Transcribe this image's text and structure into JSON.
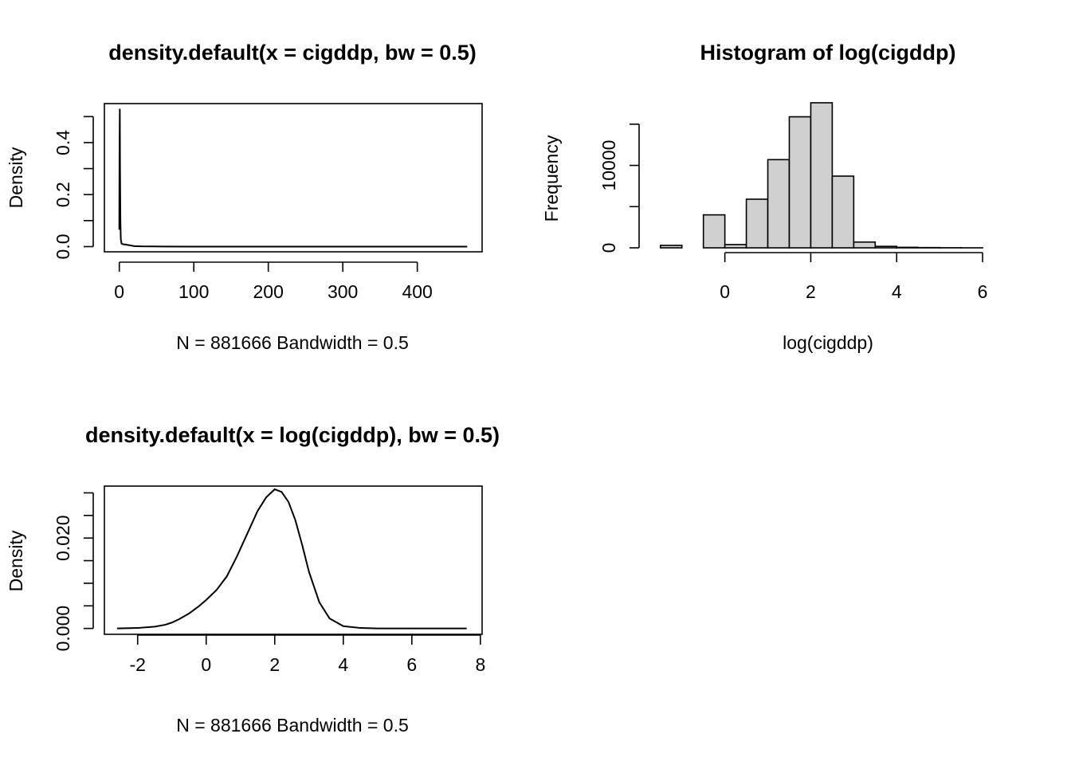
{
  "chart_data": [
    {
      "type": "line",
      "title": "density.default(x = cigddp, bw = 0.5)",
      "xlabel": "N = 881666   Bandwidth = 0.5",
      "ylabel": "Density",
      "xlim": [
        -20,
        487
      ],
      "ylim": [
        -0.02,
        0.55
      ],
      "xticks": [
        0,
        100,
        200,
        300,
        400
      ],
      "yticks": [
        0.0,
        0.1,
        0.2,
        0.3,
        0.4,
        0.5
      ],
      "ytick_labels": [
        "0.0",
        "",
        "0.2",
        "",
        "0.4",
        ""
      ],
      "x": [
        0,
        0.3,
        0.7,
        1,
        1.5,
        2,
        3,
        5,
        8,
        12,
        16,
        20,
        30,
        60,
        100,
        200,
        300,
        400,
        467
      ],
      "y": [
        0.065,
        0.35,
        0.53,
        0.3,
        0.1,
        0.03,
        0.012,
        0.009,
        0.008,
        0.006,
        0.004,
        0.002,
        0.001,
        0.0003,
        0.0001,
        0,
        0,
        0,
        0
      ]
    },
    {
      "type": "bar",
      "title": "Histogram of log(cigddp)",
      "xlabel": "log(cigddp)",
      "ylabel": "Frequency",
      "xlim": [
        -1.7,
        6.5
      ],
      "ylim": [
        0,
        17500
      ],
      "xticks": [
        0,
        2,
        4,
        6
      ],
      "yticks": [
        0,
        5000,
        10000,
        15000
      ],
      "ytick_labels": [
        "0",
        "",
        "10000",
        ""
      ],
      "bins": [
        [
          -1.5,
          -1.0,
          300
        ],
        [
          -1.0,
          -0.5,
          0
        ],
        [
          -0.5,
          0.0,
          4000
        ],
        [
          0.0,
          0.5,
          400
        ],
        [
          0.5,
          1.0,
          5900
        ],
        [
          1.0,
          1.5,
          10700
        ],
        [
          1.5,
          2.0,
          15900
        ],
        [
          2.0,
          2.5,
          17600
        ],
        [
          2.5,
          3.0,
          8700
        ],
        [
          3.0,
          3.5,
          700
        ],
        [
          3.5,
          4.0,
          180
        ],
        [
          4.0,
          4.5,
          60
        ],
        [
          4.5,
          5.0,
          30
        ],
        [
          5.0,
          5.5,
          10
        ],
        [
          5.5,
          6.0,
          5
        ],
        [
          6.0,
          6.5,
          0
        ]
      ]
    },
    {
      "type": "line",
      "title": "density.default(x = log(cigddp), bw = 0.5)",
      "xlabel": "N = 881666   Bandwidth = 0.5",
      "ylabel": "Density",
      "xlim": [
        -2.97,
        8.05
      ],
      "ylim": [
        -0.0013,
        0.0315
      ],
      "xticks": [
        -2,
        0,
        2,
        4,
        6,
        8
      ],
      "yticks": [
        0.0,
        0.005,
        0.01,
        0.015,
        0.02,
        0.025,
        0.03
      ],
      "ytick_labels": [
        "0.000",
        "",
        "",
        "",
        "0.020",
        "",
        ""
      ],
      "x": [
        -2.6,
        -2.0,
        -1.5,
        -1.2,
        -1.0,
        -0.8,
        -0.5,
        -0.2,
        0,
        0.3,
        0.6,
        0.9,
        1.2,
        1.5,
        1.75,
        2.0,
        2.2,
        2.4,
        2.6,
        2.8,
        3.0,
        3.3,
        3.6,
        4.0,
        4.5,
        5.0,
        6.0,
        7.0,
        7.6
      ],
      "y": [
        0.0,
        0.0001,
        0.0004,
        0.0008,
        0.0013,
        0.002,
        0.0033,
        0.005,
        0.0063,
        0.0085,
        0.0115,
        0.016,
        0.021,
        0.026,
        0.029,
        0.0308,
        0.0302,
        0.028,
        0.024,
        0.0185,
        0.0125,
        0.0058,
        0.0022,
        0.0005,
        0.0001,
        0.0,
        0.0,
        0.0,
        0.0
      ]
    }
  ]
}
